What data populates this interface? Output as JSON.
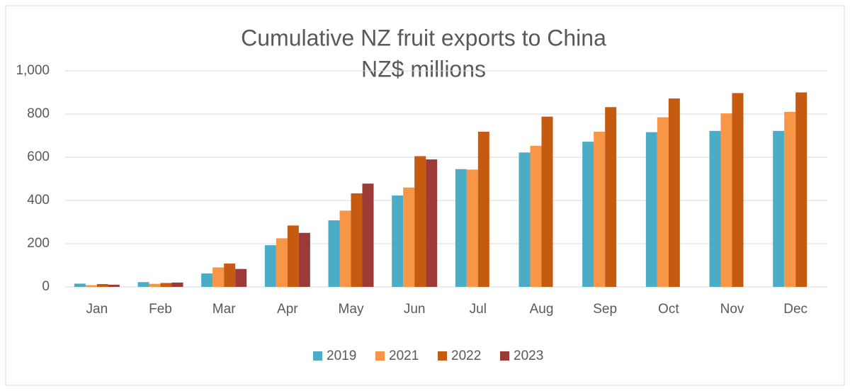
{
  "chart_data": {
    "type": "bar",
    "title": "Cumulative NZ fruit exports to China",
    "subtitle": "NZ$ millions",
    "categories": [
      "Jan",
      "Feb",
      "Mar",
      "Apr",
      "May",
      "Jun",
      "Jul",
      "Aug",
      "Sep",
      "Oct",
      "Nov",
      "Dec"
    ],
    "series": [
      {
        "name": "2019",
        "color": "#4bacc6",
        "values": [
          15,
          22,
          62,
          193,
          308,
          423,
          545,
          622,
          672,
          716,
          722,
          722
        ]
      },
      {
        "name": "2021",
        "color": "#f79646",
        "values": [
          8,
          14,
          90,
          225,
          353,
          460,
          543,
          653,
          718,
          785,
          803,
          810
        ]
      },
      {
        "name": "2022",
        "color": "#c55a11",
        "values": [
          13,
          18,
          108,
          284,
          433,
          605,
          718,
          788,
          832,
          872,
          897,
          900
        ]
      },
      {
        "name": "2023",
        "color": "#9c3a38",
        "values": [
          10,
          20,
          83,
          250,
          478,
          590,
          null,
          null,
          null,
          null,
          null,
          null
        ]
      }
    ],
    "ylim": [
      0,
      1000
    ],
    "yticks": [
      0,
      200,
      400,
      600,
      800,
      {
        "value": 1000,
        "label": "1,000"
      }
    ],
    "grid": true,
    "legend": "bottom"
  }
}
